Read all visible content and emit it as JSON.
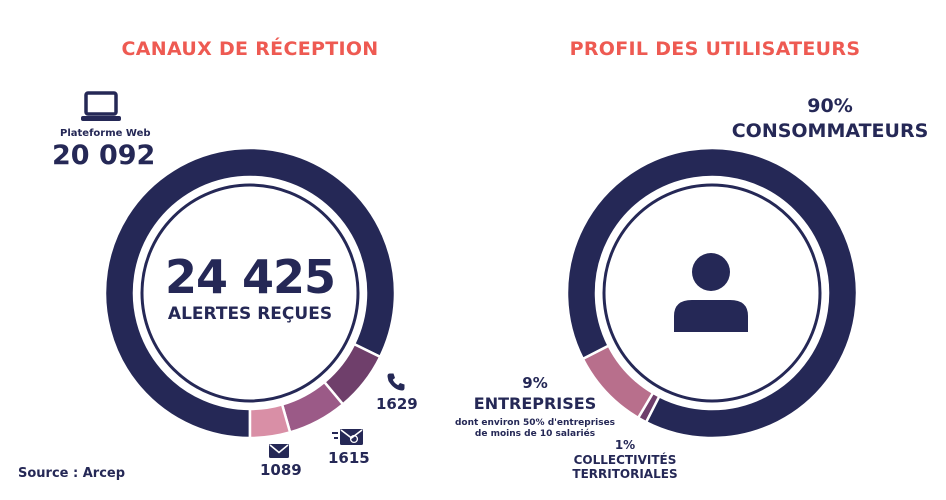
{
  "left": {
    "title": "CANAUX DE RÉCEPTION",
    "center_value": "24 425",
    "center_label": "ALERTES REÇUES",
    "channels": [
      {
        "key": "web",
        "label": "Plateforme Web",
        "display": "20 092",
        "value": 20092,
        "icon": "laptop-icon",
        "color": "#252856"
      },
      {
        "key": "phone",
        "label": "",
        "display": "1629",
        "value": 1629,
        "icon": "phone-icon",
        "color": "#6f3f6b"
      },
      {
        "key": "mail",
        "label": "",
        "display": "1615",
        "value": 1615,
        "icon": "mail-icon",
        "color": "#9b5a87"
      },
      {
        "key": "email",
        "label": "",
        "display": "1089",
        "value": 1089,
        "icon": "email-icon",
        "color": "#d98fa6"
      }
    ]
  },
  "right": {
    "title": "PROFIL DES UTILISATEURS",
    "icon": "user-icon",
    "segments": [
      {
        "key": "consommateurs",
        "percent": "90%",
        "label": "CONSOMMATEURS",
        "value": 90,
        "color": "#252856"
      },
      {
        "key": "entreprises",
        "percent": "9%",
        "label": "ENTREPRISES",
        "note_line1": "dont environ 50% d'entreprises",
        "note_line2": "de moins de 10 salariés",
        "value": 9,
        "color": "#b86f8c"
      },
      {
        "key": "collectivites",
        "percent": "1%",
        "label_line1": "COLLECTIVITÉS",
        "label_line2": "TERRITORIALES",
        "value": 1,
        "color": "#6f3f6b"
      }
    ]
  },
  "source": "Source : Arcep",
  "chart_data": [
    {
      "type": "pie",
      "title": "CANAUX DE RÉCEPTION",
      "total": 24425,
      "categories": [
        "Plateforme Web",
        "Téléphone",
        "Courrier",
        "E-mail"
      ],
      "values": [
        20092,
        1629,
        1615,
        1089
      ]
    },
    {
      "type": "pie",
      "title": "PROFIL DES UTILISATEURS",
      "categories": [
        "CONSOMMATEURS",
        "ENTREPRISES",
        "COLLECTIVITÉS TERRITORIALES"
      ],
      "values": [
        90,
        9,
        1
      ]
    }
  ]
}
